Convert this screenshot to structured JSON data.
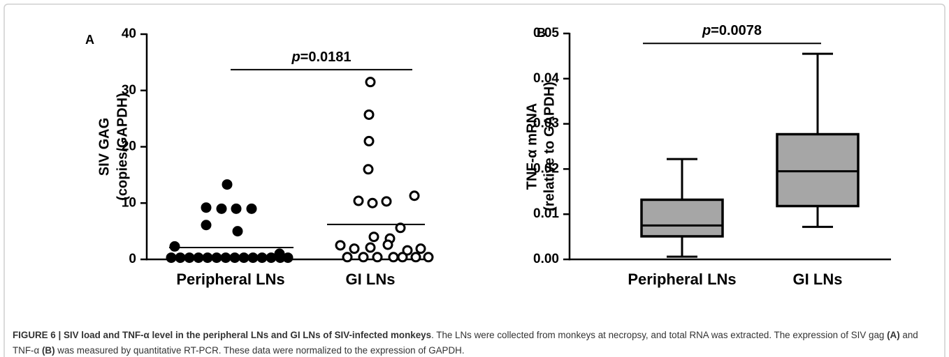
{
  "chart_data": [
    {
      "type": "dotplot",
      "panel_label": "A",
      "ylabel": [
        "SIV GAG",
        "(copies/GAPDH)"
      ],
      "categories": [
        "Peripheral LNs",
        "GI LNs"
      ],
      "values": [
        [
          13.3,
          9.2,
          9.0,
          9.0,
          9.0,
          6.1,
          5.0,
          2.3,
          1.0,
          0.3,
          0.3,
          0.3,
          0.3,
          0.3,
          0.3,
          0.3,
          0.3,
          0.3,
          0.3,
          0.3,
          0.3,
          0.3,
          0.3
        ],
        [
          31.5,
          25.7,
          21.0,
          16.0,
          10.4,
          10.0,
          10.3,
          11.3,
          5.6,
          4.0,
          3.7,
          2.5,
          1.9,
          2.1,
          2.6,
          1.9,
          1.6,
          0.4,
          0.4,
          0.4,
          0.4,
          0.4,
          0.4,
          0.4
        ]
      ],
      "means": [
        2.1,
        6.2
      ],
      "marker_fill": [
        "#000000",
        "#ffffff"
      ],
      "ylim": [
        0,
        40
      ],
      "yticks": [
        0,
        10,
        20,
        30,
        40
      ],
      "annotation": "p=0.0181",
      "annotation_y": 33.7
    },
    {
      "type": "box",
      "panel_label": "B",
      "ylabel": [
        "TNF-α mRNA",
        "(relative to GAPDH)"
      ],
      "categories": [
        "Peripheral LNs",
        "GI LNs"
      ],
      "boxes": [
        {
          "min": 0.0006,
          "q1": 0.0051,
          "median": 0.0075,
          "q3": 0.0132,
          "max": 0.0222
        },
        {
          "min": 0.0072,
          "q1": 0.0118,
          "median": 0.0195,
          "q3": 0.0277,
          "max": 0.0455
        }
      ],
      "color": "#a6a6a6",
      "ylim": [
        0,
        0.05
      ],
      "yticks": [
        {
          "value": 0,
          "label": "0.00"
        },
        0.01,
        0.02,
        0.03,
        0.04,
        0.05
      ],
      "annotation": "p=0.0078",
      "annotation_y": 0.0478
    }
  ],
  "caption": [
    {
      "text": "FIGURE 6 | SIV load and TNF-α level in the peripheral LNs and GI LNs of SIV-infected monkeys",
      "bold": true
    },
    {
      "text": ". The LNs were collected from monkeys at necropsy, and total RNA was extracted. The expression of SIV gag ",
      "bold": false
    },
    {
      "text": "(A)",
      "bold": true
    },
    {
      "text": " and TNF-α ",
      "bold": false
    },
    {
      "text": "(B)",
      "bold": true
    },
    {
      "text": " was measured by quantitative RT-PCR. These data were normalized to the expression of GAPDH.",
      "bold": false
    }
  ]
}
